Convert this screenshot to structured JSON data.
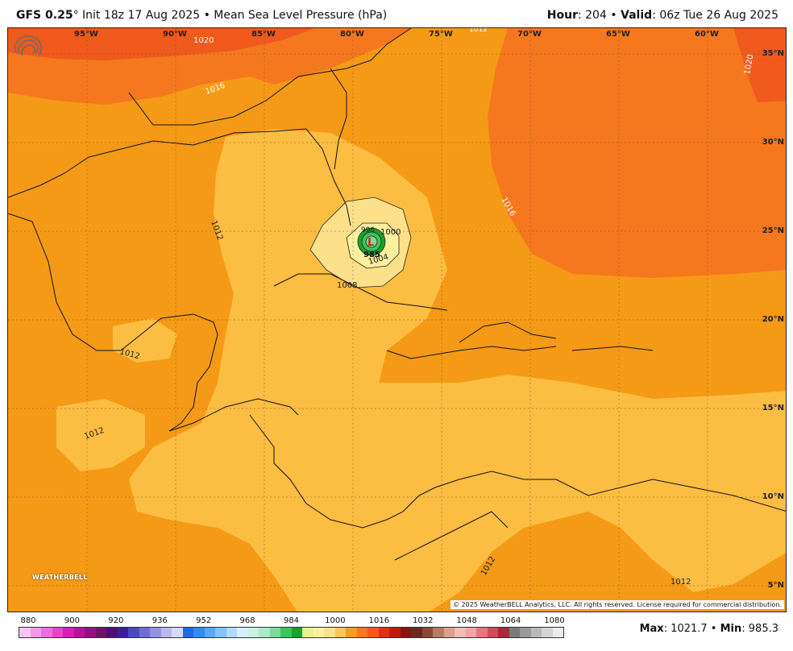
{
  "header": {
    "model": "GFS 0.25",
    "degree": "°",
    "init": " Init 18z 17 Aug 2025 • Mean Sea Level Pressure (hPa)",
    "hour_label": "Hour",
    "hour_value": ": 204 • ",
    "valid_label": "Valid",
    "valid_value": ": 06z Tue 26 Aug 2025"
  },
  "map": {
    "longitude_labels": [
      "95°W",
      "90°W",
      "85°W",
      "80°W",
      "75°W",
      "70°W",
      "65°W",
      "60°W"
    ],
    "latitude_labels": [
      "35°N",
      "30°N",
      "25°N",
      "20°N",
      "15°N",
      "10°N",
      "5°N"
    ],
    "contour_labels": [
      "1020",
      "1016",
      "1012",
      "1016",
      "1020",
      "1012",
      "1012",
      "1008",
      "1004",
      "1000",
      "996",
      "985",
      "1012",
      "1012",
      "1012",
      "1016"
    ],
    "low_center_value": "985",
    "low_center_symbol": "L",
    "copyright": "© 2025 WeatherBELL Analytics, LLC. All rights reserved. License required for commercial distribution.",
    "logo_text": "WEATHERBELL"
  },
  "colorbar": {
    "ticks": [
      "880",
      "900",
      "920",
      "936",
      "952",
      "968",
      "984",
      "1000",
      "1016",
      "1032",
      "1048",
      "1064",
      "1080"
    ],
    "colors": [
      "#f7c6f0",
      "#f29ae6",
      "#ee6fdc",
      "#e942cf",
      "#d41eb8",
      "#b5139c",
      "#951080",
      "#74106a",
      "#4c0f7a",
      "#3a1f9a",
      "#4a4ac0",
      "#6e6ed6",
      "#9292e4",
      "#b8b8ef",
      "#d8d8f7",
      "#1a6ee0",
      "#2d8cf0",
      "#55a9f5",
      "#83c3f8",
      "#b0daf9",
      "#d7eefb",
      "#c9f1e4",
      "#a8ebc6",
      "#78dc97",
      "#3cc558",
      "#17a32e",
      "#e8f28a",
      "#fdf1a0",
      "#fde08a",
      "#fdc457",
      "#f99a21",
      "#f5781f",
      "#f05a1c",
      "#db3412",
      "#bc1b0f",
      "#8f1010",
      "#6b2a1c",
      "#8a4a32",
      "#b87a63",
      "#d9a08f",
      "#f1bdb4",
      "#f4a3a6",
      "#e8747f",
      "#d14a58",
      "#a9293a",
      "#7a7a7a",
      "#9a9a9a",
      "#b8b8b8",
      "#d4d4d4",
      "#ececec"
    ]
  },
  "stats": {
    "max_label": "Max",
    "max_value": ": 1021.7 • ",
    "min_label": "Min",
    "min_value": ": 985.3"
  }
}
